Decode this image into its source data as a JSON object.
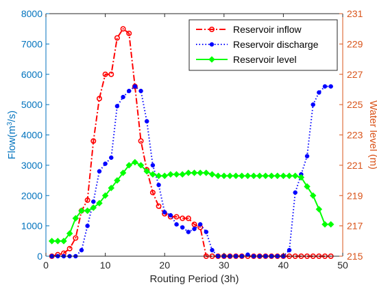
{
  "chart_data": {
    "type": "line",
    "xlabel": "Routing Period (3h)",
    "ylabel_left_prefix": "Flow(m",
    "ylabel_left_sup": "3",
    "ylabel_left_suffix": "/s)",
    "ylabel_right": "Water level (m)",
    "xlim": [
      0,
      50
    ],
    "xticks": [
      0,
      10,
      20,
      30,
      40,
      50
    ],
    "ylim_left": [
      0,
      8000
    ],
    "yticks_left": [
      0,
      1000,
      2000,
      3000,
      4000,
      5000,
      6000,
      7000,
      8000
    ],
    "ylim_right": [
      215,
      231
    ],
    "yticks_right": [
      215,
      217,
      219,
      221,
      223,
      225,
      227,
      229,
      231
    ],
    "legend_position": "top-right",
    "colors": {
      "left_axis": "#0072BD",
      "right_axis": "#D95319",
      "inflow": "#FF0000",
      "discharge": "#0000FF",
      "level": "#00FF00"
    },
    "series": [
      {
        "name": "Reservoir inflow",
        "axis": "left",
        "style": "dash-dot",
        "marker": "circle",
        "x": [
          1,
          2,
          3,
          4,
          5,
          6,
          7,
          8,
          9,
          10,
          11,
          12,
          13,
          14,
          15,
          16,
          17,
          18,
          19,
          20,
          21,
          22,
          23,
          24,
          25,
          26,
          27,
          28,
          29,
          30,
          31,
          32,
          33,
          34,
          35,
          36,
          37,
          38,
          39,
          40,
          41,
          42,
          43,
          44,
          45,
          46,
          47,
          48
        ],
        "values": [
          0,
          50,
          100,
          250,
          600,
          1500,
          1850,
          3800,
          5200,
          6000,
          6000,
          7200,
          7500,
          7350,
          5600,
          3800,
          2850,
          2100,
          1650,
          1400,
          1300,
          1300,
          1250,
          1250,
          1050,
          950,
          0,
          0,
          0,
          0,
          0,
          0,
          0,
          0,
          0,
          0,
          0,
          0,
          0,
          0,
          0,
          0,
          0,
          0,
          0,
          0,
          0,
          0
        ]
      },
      {
        "name": "Reservoir discharge",
        "axis": "left",
        "style": "dotted",
        "marker": "dot",
        "x": [
          1,
          2,
          3,
          4,
          5,
          6,
          7,
          8,
          9,
          10,
          11,
          12,
          13,
          14,
          15,
          16,
          17,
          18,
          19,
          20,
          21,
          22,
          23,
          24,
          25,
          26,
          27,
          28,
          29,
          30,
          31,
          32,
          33,
          34,
          35,
          36,
          37,
          38,
          39,
          40,
          41,
          42,
          43,
          44,
          45,
          46,
          47,
          48
        ],
        "values": [
          0,
          0,
          0,
          0,
          0,
          200,
          1000,
          1800,
          2800,
          3050,
          3250,
          4950,
          5250,
          5450,
          5600,
          5450,
          4450,
          3000,
          2350,
          1450,
          1350,
          1050,
          950,
          800,
          900,
          1050,
          800,
          200,
          0,
          0,
          0,
          0,
          0,
          50,
          0,
          0,
          0,
          0,
          0,
          0,
          200,
          2100,
          2700,
          3300,
          5000,
          5400,
          5600,
          5600
        ]
      },
      {
        "name": "Reservoir level",
        "axis": "right",
        "style": "solid",
        "marker": "diamond",
        "x": [
          1,
          2,
          3,
          4,
          5,
          6,
          7,
          8,
          9,
          10,
          11,
          12,
          13,
          14,
          15,
          16,
          17,
          18,
          19,
          20,
          21,
          22,
          23,
          24,
          25,
          26,
          27,
          28,
          29,
          30,
          31,
          32,
          33,
          34,
          35,
          36,
          37,
          38,
          39,
          40,
          41,
          42,
          43,
          44,
          45,
          46,
          47,
          48
        ],
        "values": [
          216,
          216,
          216,
          216.5,
          217.5,
          218,
          218,
          218.2,
          218.5,
          219,
          219.5,
          220,
          220.5,
          221,
          221.2,
          221,
          220.6,
          220.4,
          220.3,
          220.3,
          220.4,
          220.4,
          220.4,
          220.5,
          220.5,
          220.5,
          220.5,
          220.4,
          220.3,
          220.3,
          220.3,
          220.3,
          220.3,
          220.3,
          220.3,
          220.3,
          220.3,
          220.3,
          220.3,
          220.3,
          220.3,
          220.3,
          220.2,
          219.6,
          219,
          218.1,
          217.1,
          217.1
        ]
      }
    ]
  }
}
